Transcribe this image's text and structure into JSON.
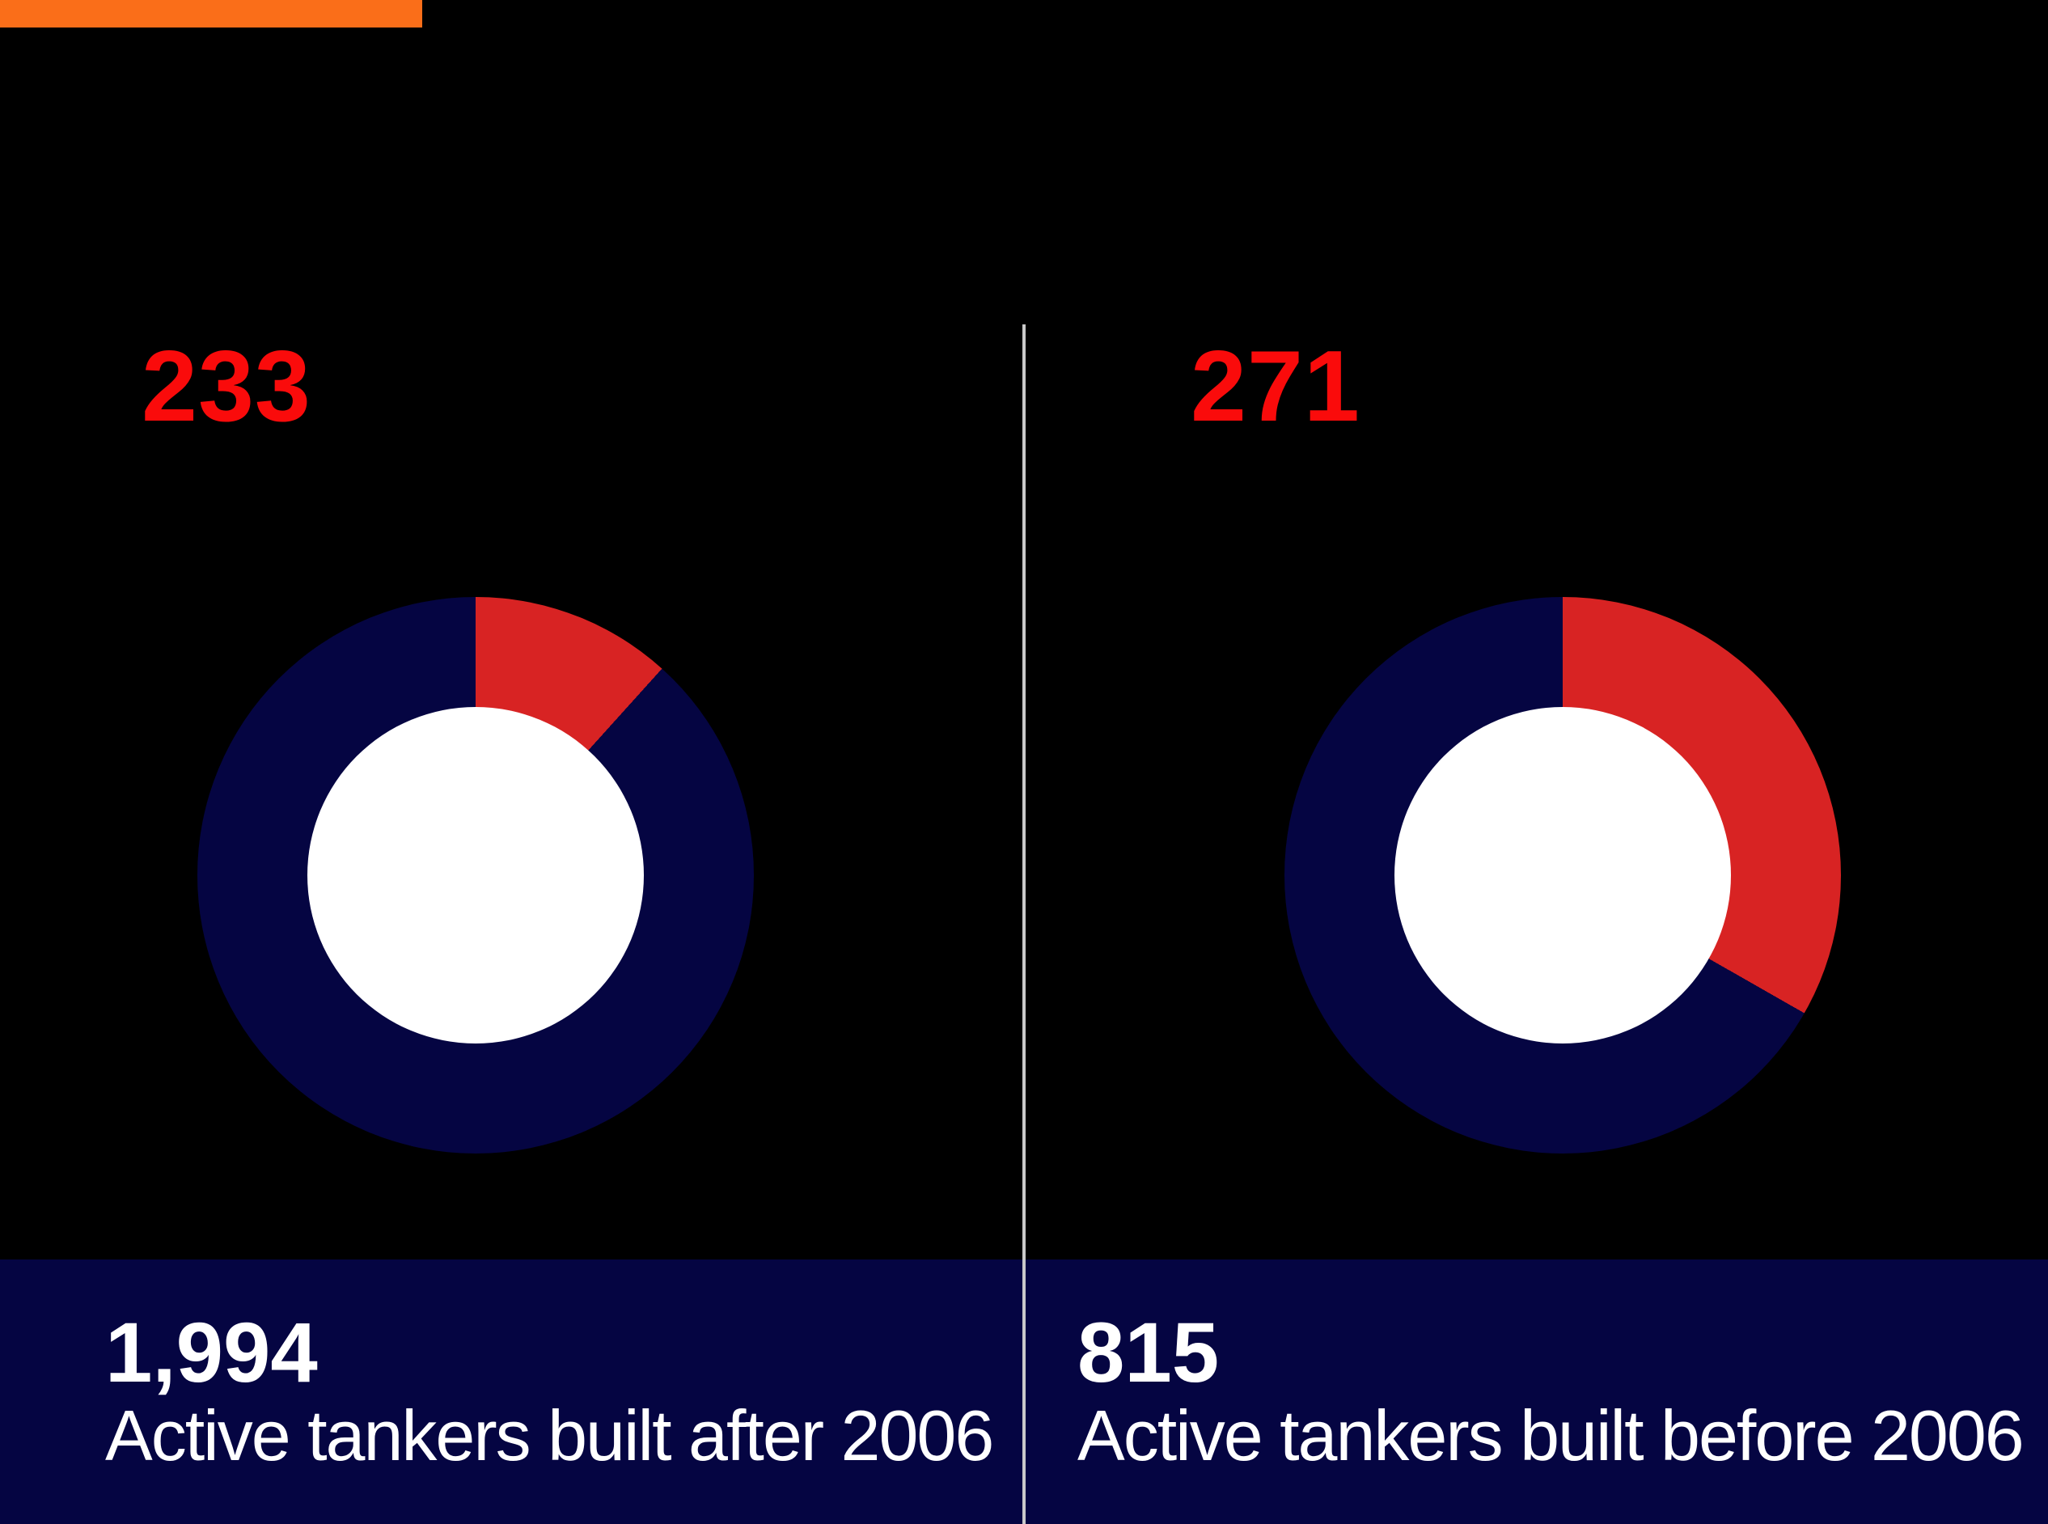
{
  "colors": {
    "page_background": "#000000",
    "accent_orange": "#fa6e19",
    "number_red": "#fa0b0b",
    "slice_red": "#d82323",
    "navy": "#050542",
    "hole_white": "#ffffff",
    "divider_gray": "#c9c9c9",
    "text_white": "#ffffff"
  },
  "panels": {
    "left": {
      "highlight": "233",
      "total": "1,994",
      "label": "Active tankers built after 2006"
    },
    "right": {
      "highlight": "271",
      "total": "815",
      "label": "Active tankers built before 2006"
    }
  },
  "chart_data": [
    {
      "type": "pie",
      "subtype": "donut",
      "title": "Active tankers built after 2006",
      "highlight_label": "233",
      "total": 1994,
      "total_label": "1,994",
      "start_angle_deg": 0,
      "direction": "clockwise",
      "highlight_fraction": 0.117,
      "highlight_angle_deg": 42.1,
      "hole_fill": "#ffffff",
      "slices": [
        {
          "name": "highlighted-tankers",
          "value": 233,
          "color": "#d82323"
        },
        {
          "name": "remaining-tankers",
          "value": 1761,
          "color": "#050542"
        }
      ]
    },
    {
      "type": "pie",
      "subtype": "donut",
      "title": "Active tankers built before 2006",
      "highlight_label": "271",
      "total": 815,
      "total_label": "815",
      "start_angle_deg": 0,
      "direction": "clockwise",
      "highlight_fraction": 0.333,
      "highlight_angle_deg": 119.7,
      "hole_fill": "#ffffff",
      "slices": [
        {
          "name": "highlighted-tankers",
          "value": 271,
          "color": "#d82323"
        },
        {
          "name": "remaining-tankers",
          "value": 544,
          "color": "#050542"
        }
      ]
    }
  ]
}
